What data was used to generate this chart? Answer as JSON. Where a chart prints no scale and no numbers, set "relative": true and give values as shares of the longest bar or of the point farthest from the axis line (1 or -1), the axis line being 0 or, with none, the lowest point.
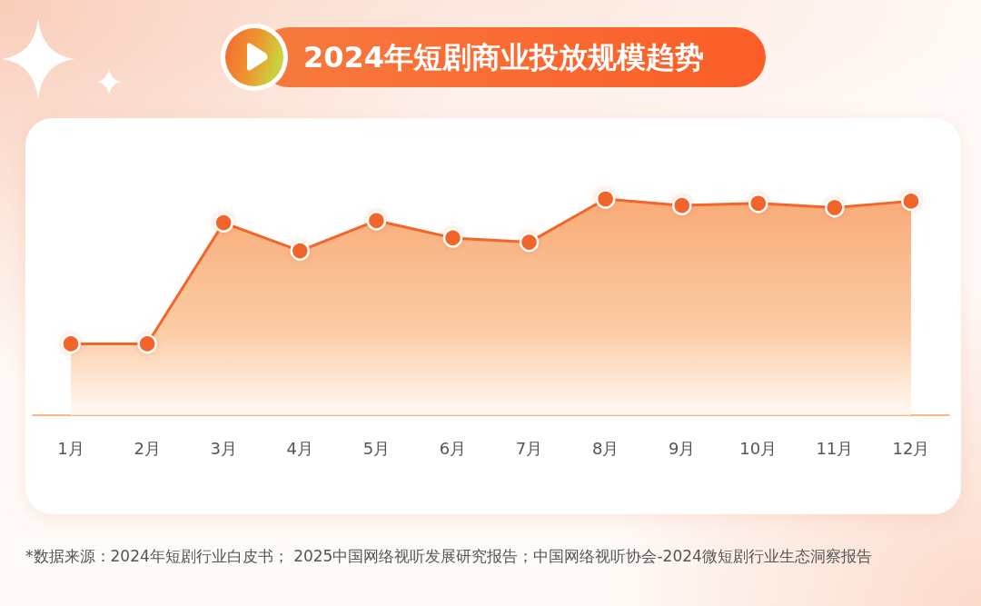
{
  "chart_data": {
    "type": "area",
    "title": "2024年短剧商业投放规模趋势",
    "categories": [
      "1月",
      "2月",
      "3月",
      "4月",
      "5月",
      "6月",
      "7月",
      "8月",
      "9月",
      "10月",
      "11月",
      "12月"
    ],
    "series": [
      {
        "color": "#f2652b",
        "values": [
          0.33,
          0.33,
          0.89,
          0.76,
          0.9,
          0.82,
          0.8,
          1,
          0.97,
          0.98,
          0.96,
          0.99
        ]
      }
    ],
    "relative": true,
    "marker": "circle",
    "line_style": "solid",
    "annotations": [
      "*数据来源：2024年短剧行业白皮书； 2025中国网络视听发展研究报告；中国网络视听协会-2024微短剧行业生态洞察报告"
    ]
  }
}
